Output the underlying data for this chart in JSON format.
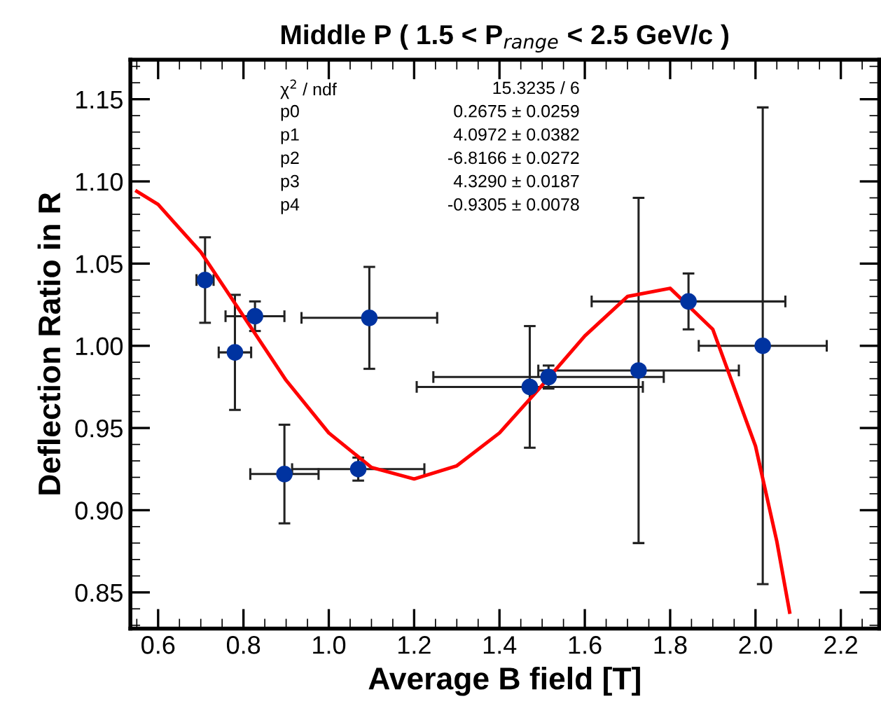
{
  "chart_data": {
    "type": "scatter",
    "title": "Middle P ( 1.5 < P$_{range}$ < 2.5 GeV/c )",
    "xlabel": "Average B field [T]",
    "ylabel": "Deflection Ratio in R",
    "xlim": [
      0.535,
      2.29
    ],
    "ylim": [
      0.828,
      1.174
    ],
    "xticks": [
      0.6,
      0.8,
      {
        "value": 1,
        "label": "1.0"
      },
      1.2,
      1.4,
      1.6,
      1.8,
      {
        "value": 2,
        "label": "2.0"
      },
      2.2
    ],
    "yticks": [
      {
        "value": 0.85,
        "label": "0.85"
      },
      {
        "value": 0.9,
        "label": "0.90"
      },
      {
        "value": 0.95,
        "label": "0.95"
      },
      {
        "value": 1.0,
        "label": "1.00"
      },
      {
        "value": 1.05,
        "label": "1.05"
      },
      {
        "value": 1.1,
        "label": "1.10"
      },
      {
        "value": 1.15,
        "label": "1.15"
      }
    ],
    "grid": false,
    "marker": "circle",
    "annotations": [
      "χ$^{2}$ / ndf",
      "15.3235 / 6",
      "p0",
      "0.2675 ± 0.0259",
      "p1",
      "4.0972 ± 0.0382",
      "p2",
      "-6.8166 ± 0.0272",
      "p3",
      "4.3290 ± 0.0187",
      "p4",
      "-0.9305 ± 0.0078"
    ],
    "series": [
      {
        "color": "#0033a0",
        "x": [
          0.71,
          0.78,
          0.827,
          1.095,
          0.896,
          1.069,
          1.471,
          1.515,
          1.726,
          1.843,
          2.017
        ],
        "values": [
          1.04,
          0.996,
          1.018,
          1.017,
          0.922,
          0.925,
          0.975,
          0.981,
          0.985,
          1.027,
          1.0
        ],
        "errors": [
          0.026,
          0.035,
          0.009,
          0.031,
          0.03,
          0.007,
          0.037,
          0.007,
          0.105,
          0.017,
          0.145
        ],
        "xerrors": [
          0.02,
          0.038,
          0.069,
          0.159,
          0.08,
          0.155,
          0.265,
          0.27,
          0.235,
          0.227,
          0.15
        ]
      },
      {
        "type": "line",
        "color": "#ff0000",
        "line_style": "solid",
        "marker": "none",
        "x": [
          0.55,
          0.6,
          0.7,
          0.8,
          0.9,
          1.0,
          1.1,
          1.2,
          1.3,
          1.4,
          1.5,
          1.6,
          1.7,
          1.8,
          1.9,
          2.0,
          2.05,
          2.08
        ],
        "values": [
          1.094,
          1.086,
          1.057,
          1.018,
          0.979,
          0.947,
          0.926,
          0.919,
          0.927,
          0.947,
          0.976,
          1.006,
          1.03,
          1.035,
          1.01,
          0.939,
          0.881,
          0.838
        ]
      }
    ]
  }
}
